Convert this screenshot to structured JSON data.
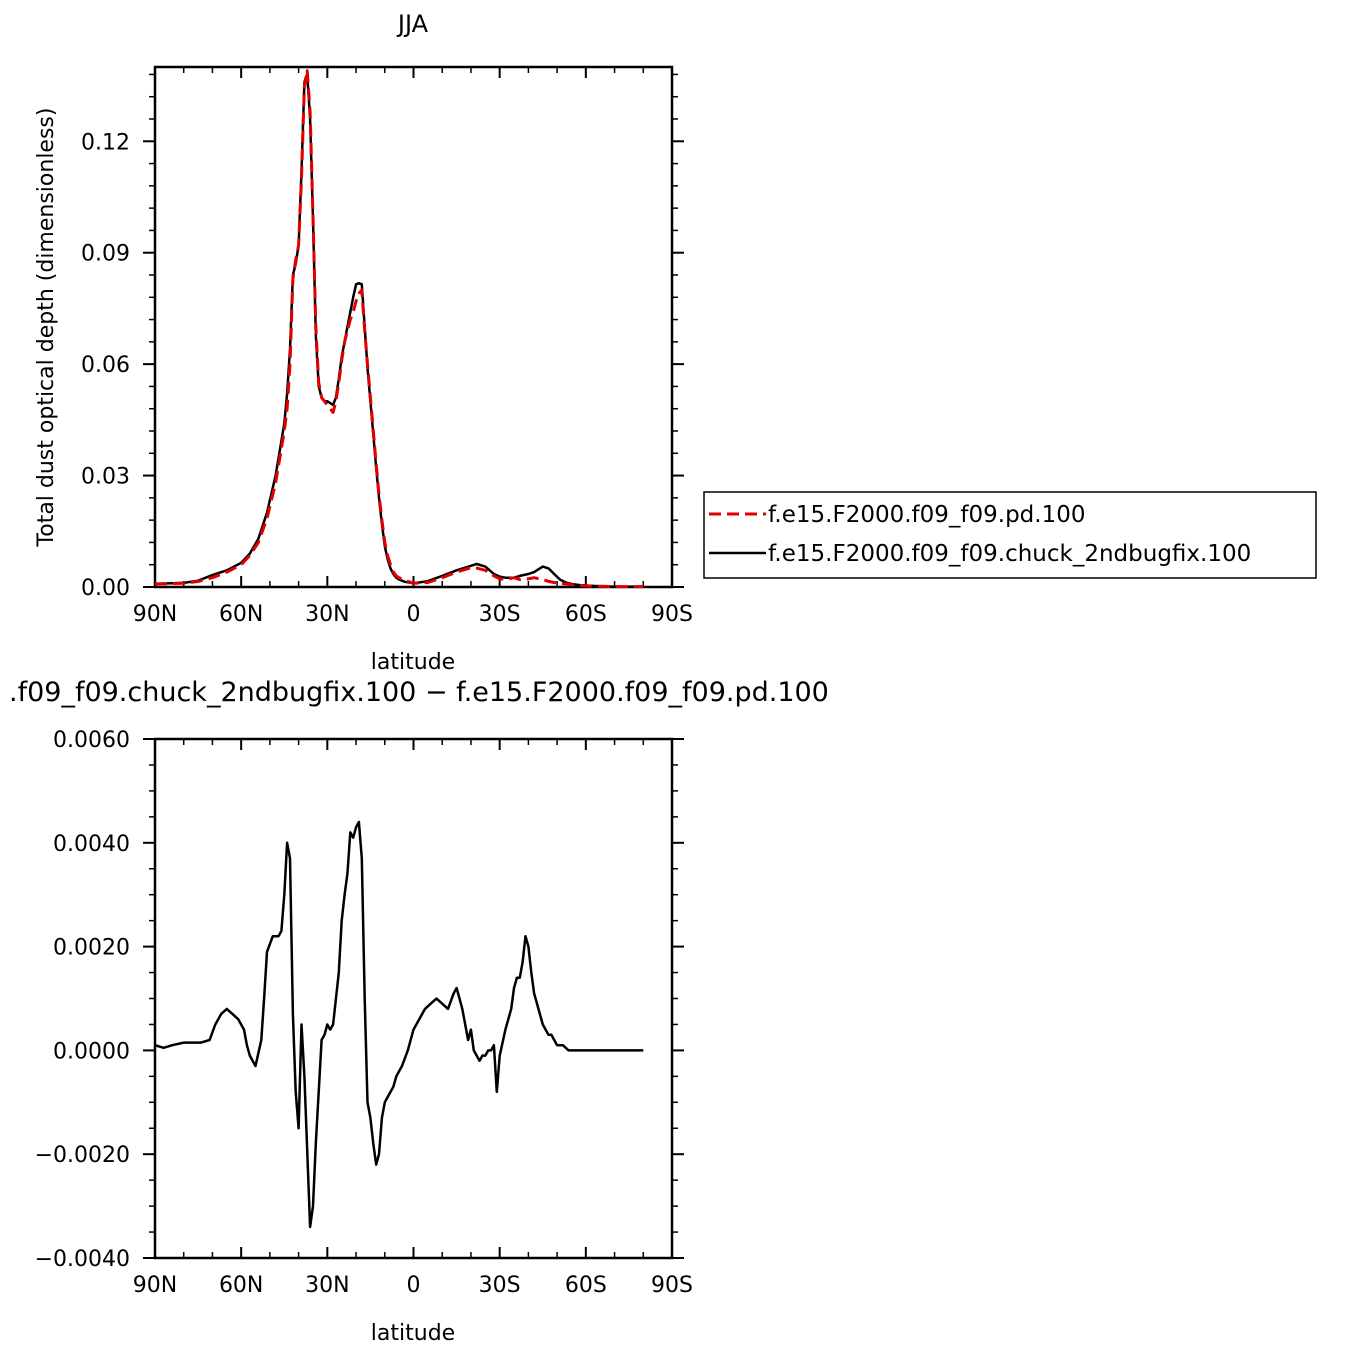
{
  "chart_data": [
    {
      "type": "line",
      "title": "JJA",
      "xlabel": "latitude",
      "ylabel": "Total dust optical depth (dimensionless)",
      "xlim": [
        90,
        -90
      ],
      "ylim": [
        0,
        0.14
      ],
      "xticks": [
        {
          "v": 90,
          "label": "90N"
        },
        {
          "v": 60,
          "label": "60N"
        },
        {
          "v": 30,
          "label": "30N"
        },
        {
          "v": 0,
          "label": "0"
        },
        {
          "v": -30,
          "label": "30S"
        },
        {
          "v": -60,
          "label": "60S"
        },
        {
          "v": -90,
          "label": "90S"
        }
      ],
      "yticks": [
        {
          "v": 0,
          "label": "0.00"
        },
        {
          "v": 0.03,
          "label": "0.03"
        },
        {
          "v": 0.06,
          "label": "0.06"
        },
        {
          "v": 0.09,
          "label": "0.09"
        },
        {
          "v": 0.12,
          "label": "0.12"
        }
      ],
      "legend_position": "right",
      "series": [
        {
          "name": "f.e15.F2000.f09_f09.pd.100",
          "color": "#e00000",
          "dash": true,
          "x": [
            90,
            80,
            75,
            70,
            65,
            60,
            57,
            54,
            51,
            48,
            45,
            44,
            43,
            42,
            41,
            40,
            39,
            38,
            37,
            36,
            35,
            34,
            33,
            32,
            31,
            30,
            29,
            28,
            27,
            26,
            25,
            24,
            23,
            22,
            21,
            20,
            19,
            18,
            17,
            16,
            15,
            14,
            13,
            12,
            11,
            10,
            9,
            8,
            7,
            6,
            5,
            3,
            0,
            -5,
            -10,
            -15,
            -20,
            -22,
            -25,
            -28,
            -30,
            -32,
            -35,
            -37,
            -40,
            -42,
            -45,
            -47,
            -49,
            -51,
            -53,
            -55,
            -58,
            -60,
            -65,
            -70,
            -75,
            -80
          ],
          "y": [
            0.0008,
            0.001,
            0.0015,
            0.0025,
            0.004,
            0.006,
            0.0085,
            0.012,
            0.0185,
            0.028,
            0.042,
            0.048,
            0.06,
            0.083,
            0.088,
            0.092,
            0.11,
            0.135,
            0.139,
            0.128,
            0.1,
            0.07,
            0.055,
            0.051,
            0.05,
            0.049,
            0.048,
            0.047,
            0.05,
            0.055,
            0.061,
            0.066,
            0.069,
            0.072,
            0.074,
            0.077,
            0.079,
            0.08,
            0.069,
            0.06,
            0.051,
            0.042,
            0.033,
            0.025,
            0.018,
            0.012,
            0.0085,
            0.006,
            0.004,
            0.003,
            0.0025,
            0.0018,
            0.001,
            0.0012,
            0.0025,
            0.004,
            0.0052,
            0.0051,
            0.0045,
            0.003,
            0.0022,
            0.002,
            0.0025,
            0.002,
            0.0022,
            0.0025,
            0.002,
            0.0015,
            0.0012,
            0.001,
            0.0008,
            0.0006,
            0.0004,
            0.0003,
            0.0002,
            0.0001,
            0.0001,
            0.0001
          ]
        },
        {
          "name": "f.e15.F2000.f09_f09.chuck_2ndbugfix.100",
          "color": "#000000",
          "dash": false,
          "x": [
            90,
            80,
            75,
            70,
            65,
            60,
            57,
            54,
            51,
            48,
            45,
            44,
            43,
            42,
            41,
            40,
            39,
            38,
            37,
            36,
            35,
            34,
            33,
            32,
            31,
            30,
            29,
            28,
            27,
            26,
            25,
            24,
            23,
            22,
            21,
            20,
            19,
            18,
            17,
            16,
            15,
            14,
            13,
            12,
            11,
            10,
            9,
            8,
            7,
            6,
            5,
            3,
            0,
            -5,
            -10,
            -15,
            -20,
            -22,
            -25,
            -28,
            -30,
            -32,
            -35,
            -37,
            -40,
            -42,
            -45,
            -47,
            -49,
            -51,
            -53,
            -55,
            -58,
            -60,
            -65,
            -70,
            -75,
            -80
          ],
          "y": [
            0.0009,
            0.0011,
            0.0017,
            0.0032,
            0.0045,
            0.0065,
            0.009,
            0.013,
            0.02,
            0.03,
            0.044,
            0.052,
            0.064,
            0.084,
            0.087,
            0.092,
            0.112,
            0.136,
            0.138,
            0.126,
            0.099,
            0.068,
            0.054,
            0.051,
            0.05,
            0.05,
            0.0495,
            0.049,
            0.051,
            0.056,
            0.062,
            0.066,
            0.07,
            0.074,
            0.078,
            0.0815,
            0.0818,
            0.0815,
            0.07,
            0.059,
            0.05,
            0.041,
            0.032,
            0.024,
            0.017,
            0.011,
            0.0075,
            0.005,
            0.0035,
            0.0025,
            0.002,
            0.0014,
            0.001,
            0.0016,
            0.003,
            0.0045,
            0.0057,
            0.0062,
            0.0055,
            0.0035,
            0.0028,
            0.0025,
            0.0025,
            0.003,
            0.0035,
            0.004,
            0.0055,
            0.005,
            0.0035,
            0.002,
            0.0012,
            0.0008,
            0.0005,
            0.0004,
            0.0002,
            0.0001,
            0.0001,
            0.0001
          ]
        }
      ]
    },
    {
      "type": "line",
      "title": ".f09_f09.chuck_2ndbugfix.100 − f.e15.F2000.f09_f09.pd.100",
      "xlabel": "latitude",
      "ylabel": "",
      "xlim": [
        90,
        -90
      ],
      "ylim": [
        -0.004,
        0.006
      ],
      "xticks": [
        {
          "v": 90,
          "label": "90N"
        },
        {
          "v": 60,
          "label": "60N"
        },
        {
          "v": 30,
          "label": "30N"
        },
        {
          "v": 0,
          "label": "0"
        },
        {
          "v": -30,
          "label": "30S"
        },
        {
          "v": -60,
          "label": "60S"
        },
        {
          "v": -90,
          "label": "90S"
        }
      ],
      "yticks": [
        {
          "v": -0.004,
          "label": "−0.0040"
        },
        {
          "v": -0.002,
          "label": "−0.0020"
        },
        {
          "v": 0,
          "label": "0.0000"
        },
        {
          "v": 0.002,
          "label": "0.0020"
        },
        {
          "v": 0.004,
          "label": "0.0040"
        },
        {
          "v": 0.006,
          "label": "0.0060"
        }
      ],
      "series": [
        {
          "color": "#000000",
          "dash": false,
          "x": [
            90,
            87,
            84,
            80,
            77,
            74,
            71,
            69,
            68,
            67,
            65,
            63,
            61,
            59,
            58,
            57,
            55,
            53,
            52,
            51,
            49,
            48,
            47,
            46,
            45,
            44,
            43,
            42,
            41,
            40,
            39,
            38,
            36,
            35,
            34,
            33,
            32,
            31,
            30,
            29,
            28,
            26,
            25,
            24,
            23,
            22,
            21,
            20,
            19,
            18,
            17,
            16,
            15,
            14,
            13,
            12,
            11,
            10,
            9,
            8,
            7,
            6,
            4,
            2,
            0,
            -2,
            -4,
            -6,
            -8,
            -10,
            -12,
            -14,
            -15,
            -16,
            -17,
            -18,
            -19,
            -20,
            -21,
            -22,
            -23,
            -24,
            -25,
            -26,
            -27,
            -28,
            -29,
            -30,
            -32,
            -34,
            -35,
            -36,
            -37,
            -38,
            -39,
            -40,
            -41,
            -42,
            -43,
            -44,
            -45,
            -46,
            -47,
            -48,
            -49,
            -50,
            -51,
            -52,
            -54,
            -56,
            -58,
            -60,
            -62,
            -64,
            -66,
            -68,
            -70,
            -72,
            -74,
            -76,
            -78,
            -80
          ],
          "y": [
            0.0001,
            5e-05,
            0.0001,
            0.00015,
            0.00015,
            0.00015,
            0.0002,
            0.0005,
            0.0006,
            0.0007,
            0.0008,
            0.0007,
            0.0006,
            0.0004,
            0.0001,
            -0.0001,
            -0.0003,
            0.0002,
            0.001,
            0.0019,
            0.0022,
            0.0022,
            0.0022,
            0.0023,
            0.003,
            0.004,
            0.0037,
            0.0007,
            -0.0008,
            -0.0015,
            0.0005,
            -0.0005,
            -0.0034,
            -0.003,
            -0.0018,
            -0.0008,
            0.0002,
            0.0003,
            0.0005,
            0.0004,
            0.0005,
            0.0015,
            0.0025,
            0.003,
            0.0034,
            0.0042,
            0.0041,
            0.0043,
            0.0044,
            0.0037,
            0.001,
            -0.001,
            -0.0013,
            -0.0018,
            -0.0022,
            -0.002,
            -0.0013,
            -0.001,
            -0.0009,
            -0.0008,
            -0.0007,
            -0.0005,
            -0.0003,
            0.0,
            0.0004,
            0.0006,
            0.0008,
            0.0009,
            0.001,
            0.0009,
            0.0008,
            0.0011,
            0.0012,
            0.001,
            0.0008,
            0.0005,
            0.0002,
            0.0004,
            0.0,
            -0.0001,
            -0.0002,
            -0.0001,
            -0.0001,
            0.0,
            0.0,
            0.0001,
            -0.0008,
            -0.0001,
            0.0004,
            0.0008,
            0.0012,
            0.0014,
            0.0014,
            0.0017,
            0.0022,
            0.002,
            0.0015,
            0.0011,
            0.0009,
            0.0007,
            0.0005,
            0.0004,
            0.0003,
            0.0003,
            0.0002,
            0.0001,
            0.0001,
            0.0001,
            0.0,
            0.0,
            0.0,
            0.0,
            0.0,
            0.0,
            0.0,
            0.0,
            0.0,
            0.0,
            0.0,
            0.0,
            0.0,
            0.0
          ]
        }
      ]
    }
  ]
}
